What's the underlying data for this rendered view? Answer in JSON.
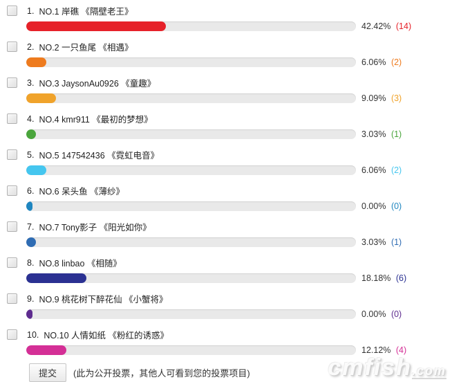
{
  "poll": {
    "items": [
      {
        "num": "1.",
        "name": "NO.1 岸礁 《隔壁老王》",
        "percent": "42.42%",
        "count": "(14)",
        "pct": 42.42,
        "color": "#e62129"
      },
      {
        "num": "2.",
        "name": "NO.2 一只鱼尾 《相遇》",
        "percent": "6.06%",
        "count": "(2)",
        "pct": 6.06,
        "color": "#ee7b1e"
      },
      {
        "num": "3.",
        "name": "NO.3 JaysonAu0926 《童趣》",
        "percent": "9.09%",
        "count": "(3)",
        "pct": 9.09,
        "color": "#f0a32b"
      },
      {
        "num": "4.",
        "name": "NO.4 kmr911 《最初的梦想》",
        "percent": "3.03%",
        "count": "(1)",
        "pct": 3.03,
        "color": "#4aa53c"
      },
      {
        "num": "5.",
        "name": "NO.5 147542436 《霓虹电音》",
        "percent": "6.06%",
        "count": "(2)",
        "pct": 6.06,
        "color": "#45c6ef"
      },
      {
        "num": "6.",
        "name": "NO.6 呆头鱼 《薄纱》",
        "percent": "0.00%",
        "count": "(0)",
        "pct": 0.0,
        "color": "#1f86c0"
      },
      {
        "num": "7.",
        "name": "NO.7 Tony影子 《阳光如你》",
        "percent": "3.03%",
        "count": "(1)",
        "pct": 3.03,
        "color": "#2f6cb3"
      },
      {
        "num": "8.",
        "name": "NO.8 linbao 《相随》",
        "percent": "18.18%",
        "count": "(6)",
        "pct": 18.18,
        "color": "#2b3192"
      },
      {
        "num": "9.",
        "name": "NO.9 桃花树下醉花仙 《小蟹将》",
        "percent": "0.00%",
        "count": "(0)",
        "pct": 0.0,
        "color": "#5e2c8f"
      },
      {
        "num": "10.",
        "name": "NO.10 人情如纸 《粉红的诱惑》",
        "percent": "12.12%",
        "count": "(4)",
        "pct": 12.12,
        "color": "#d42f96"
      }
    ]
  },
  "footer": {
    "submit_label": "提交",
    "note": "(此为公开投票，其他人可看到您的投票项目)"
  },
  "watermark": {
    "main": "cmfish",
    "suffix": ".com"
  },
  "colors": {
    "track": "#e9e9e9",
    "label_text": "#222222",
    "percent_text": "#333333"
  }
}
